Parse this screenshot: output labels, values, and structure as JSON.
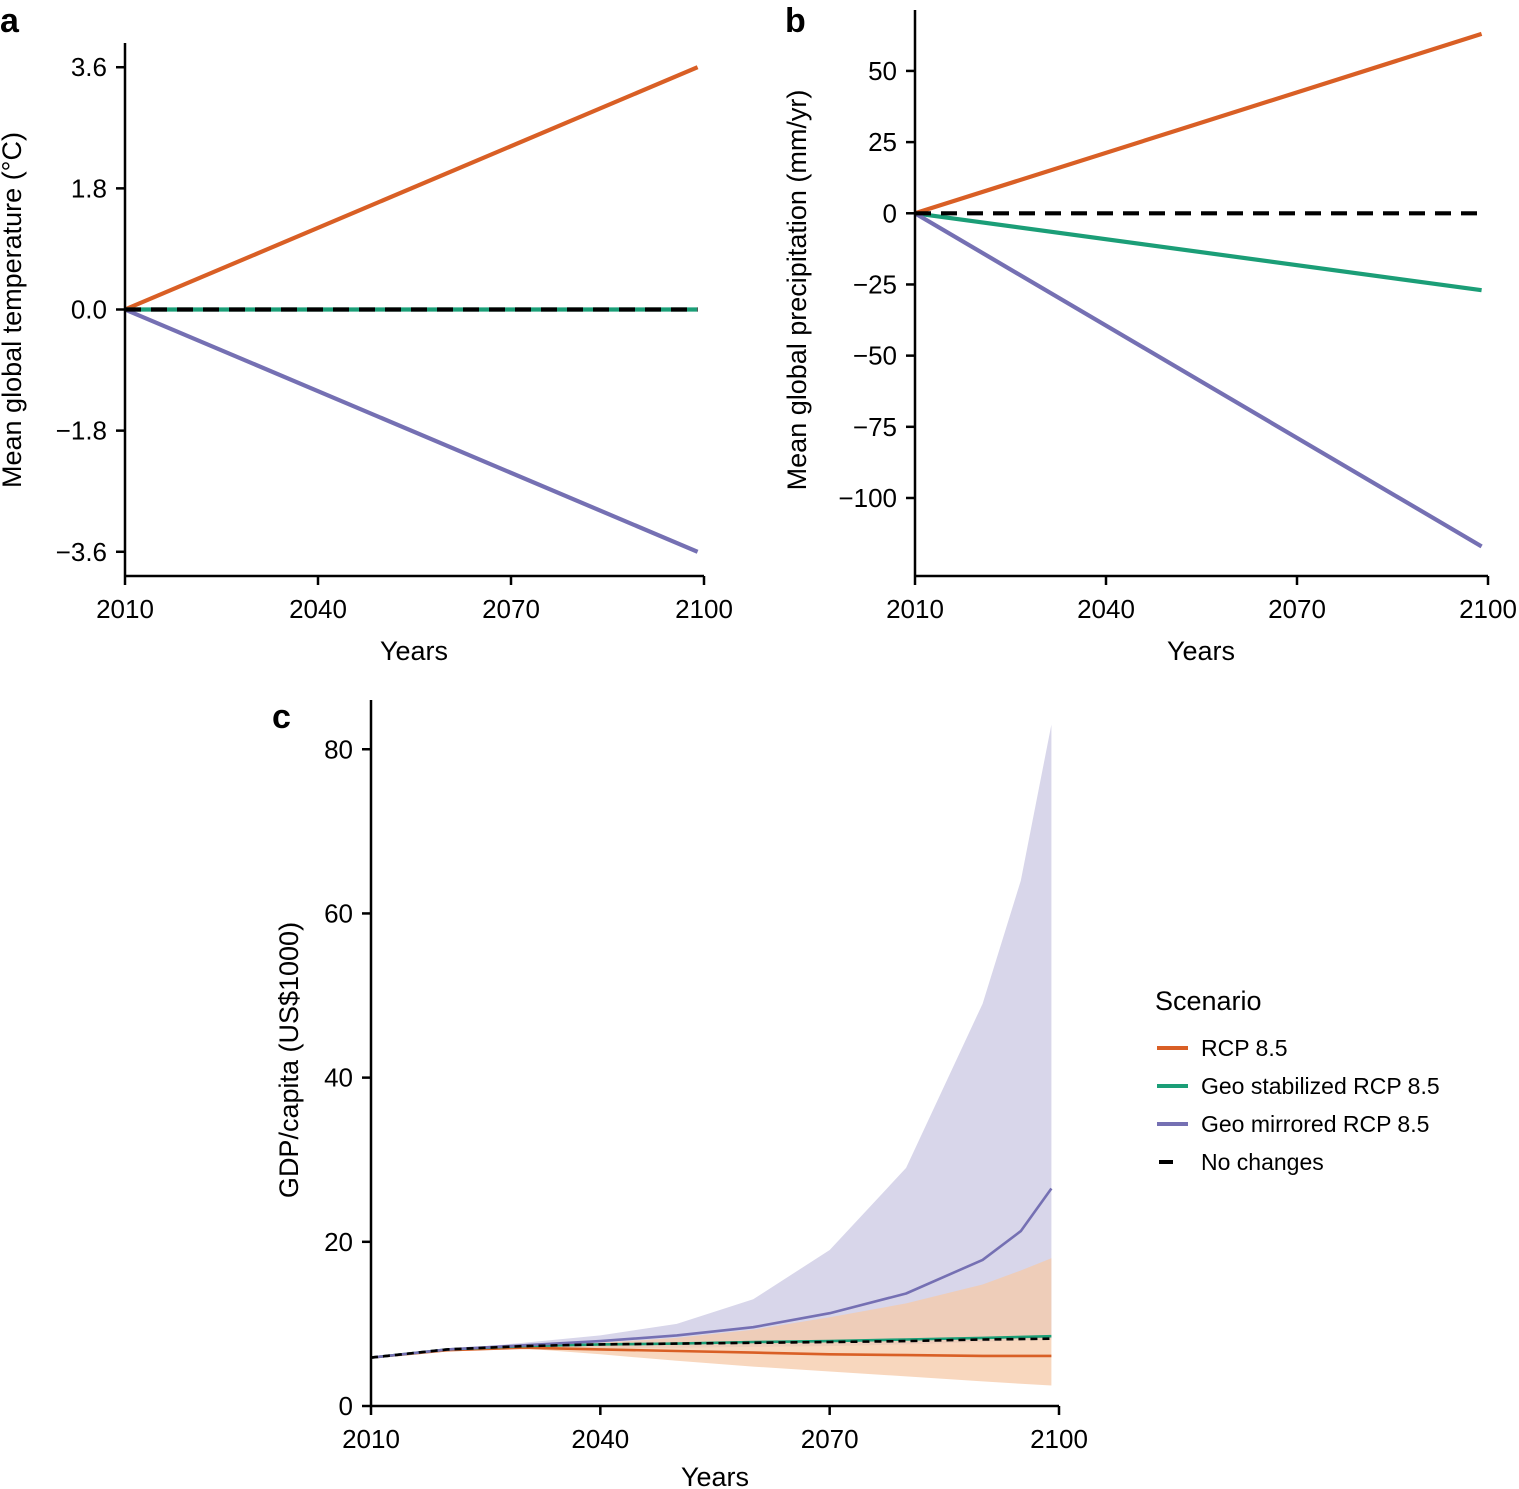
{
  "colors": {
    "rcp": "#D95F25",
    "geo_stabilized": "#1B9E77",
    "geo_mirrored": "#7570B3",
    "no_changes": "#000000",
    "mirrored_band": "#D8D6EA",
    "rcp_band": "#F6C9A8"
  },
  "chart_data": [
    {
      "panel": "a",
      "type": "line",
      "xlabel": "Years",
      "ylabel": "Mean global temperature (°C)",
      "xticks": [
        "2010",
        "2040",
        "2070",
        "2100"
      ],
      "yticks": [
        "3.6",
        "1.8",
        "0.0",
        "−1.8",
        "−3.6"
      ],
      "xlim": [
        2010,
        2100
      ],
      "ylim": [
        -3.96,
        3.96
      ],
      "series": [
        {
          "name": "RCP 8.5",
          "color_key": "rcp",
          "x": [
            2010,
            2099
          ],
          "y": [
            0,
            3.6
          ]
        },
        {
          "name": "Geo stabilized RCP 8.5",
          "color_key": "geo_stabilized",
          "x": [
            2010,
            2099
          ],
          "y": [
            0,
            0
          ]
        },
        {
          "name": "Geo mirrored RCP 8.5",
          "color_key": "geo_mirrored",
          "x": [
            2010,
            2099
          ],
          "y": [
            0,
            -3.6
          ]
        },
        {
          "name": "No changes",
          "color_key": "no_changes",
          "dashed": true,
          "x": [
            2010,
            2099
          ],
          "y": [
            0,
            0
          ]
        }
      ]
    },
    {
      "panel": "b",
      "type": "line",
      "xlabel": "Years",
      "ylabel": "Mean global precipitation (mm/yr)",
      "xticks": [
        "2010",
        "2040",
        "2070",
        "2100"
      ],
      "yticks": [
        "50",
        "25",
        "0",
        "−25",
        "−50",
        "−75",
        "−100"
      ],
      "xlim": [
        2010,
        2100
      ],
      "ylim": [
        -127.4,
        71.4
      ],
      "series": [
        {
          "name": "RCP 8.5",
          "color_key": "rcp",
          "x": [
            2010,
            2099
          ],
          "y": [
            0,
            63
          ]
        },
        {
          "name": "Geo stabilized RCP 8.5",
          "color_key": "geo_stabilized",
          "x": [
            2010,
            2099
          ],
          "y": [
            0,
            -27
          ]
        },
        {
          "name": "Geo mirrored RCP 8.5",
          "color_key": "geo_mirrored",
          "x": [
            2010,
            2099
          ],
          "y": [
            0,
            -117
          ]
        },
        {
          "name": "No changes",
          "color_key": "no_changes",
          "dashed": true,
          "x": [
            2010,
            2099
          ],
          "y": [
            0,
            0
          ]
        }
      ]
    },
    {
      "panel": "c",
      "type": "line",
      "xlabel": "Years",
      "ylabel": "GDP/capita (US$1000)",
      "xticks": [
        "2010",
        "2040",
        "2070",
        "2100"
      ],
      "yticks": [
        "80",
        "60",
        "40",
        "20",
        "0"
      ],
      "xlim": [
        2010,
        2100
      ],
      "ylim": [
        0,
        86
      ],
      "bands": [
        {
          "name": "Geo mirrored RCP 8.5 range",
          "color_key": "mirrored_band",
          "x": [
            2010,
            2020,
            2030,
            2040,
            2050,
            2060,
            2070,
            2080,
            2090,
            2095,
            2099
          ],
          "upper": [
            5.9,
            6.9,
            7.7,
            8.6,
            10.0,
            13.0,
            19.0,
            29.0,
            49.0,
            64.0,
            83.0
          ],
          "lower": [
            5.9,
            6.8,
            7.0,
            7.0,
            7.1,
            7.2,
            7.3,
            7.5,
            7.8,
            8.0,
            8.1
          ]
        },
        {
          "name": "RCP 8.5 range",
          "color_key": "rcp_band",
          "x": [
            2010,
            2020,
            2030,
            2040,
            2050,
            2060,
            2070,
            2080,
            2090,
            2095,
            2099
          ],
          "upper": [
            5.9,
            6.8,
            7.3,
            7.7,
            8.3,
            9.3,
            10.8,
            12.5,
            14.8,
            16.5,
            18.0
          ],
          "lower": [
            5.9,
            6.8,
            7.0,
            6.3,
            5.5,
            4.8,
            4.2,
            3.6,
            3.0,
            2.7,
            2.5
          ]
        }
      ],
      "series": [
        {
          "name": "RCP 8.5",
          "color_key": "rcp",
          "x": [
            2010,
            2020,
            2030,
            2040,
            2050,
            2060,
            2070,
            2080,
            2090,
            2099
          ],
          "y": [
            5.9,
            6.8,
            7.1,
            6.9,
            6.7,
            6.5,
            6.3,
            6.2,
            6.1,
            6.1
          ]
        },
        {
          "name": "Geo stabilized RCP 8.5",
          "color_key": "geo_stabilized",
          "x": [
            2010,
            2020,
            2030,
            2040,
            2050,
            2060,
            2070,
            2080,
            2090,
            2099
          ],
          "y": [
            5.9,
            6.9,
            7.3,
            7.5,
            7.6,
            7.8,
            7.9,
            8.1,
            8.3,
            8.5
          ]
        },
        {
          "name": "Geo mirrored RCP 8.5",
          "color_key": "geo_mirrored",
          "x": [
            2010,
            2020,
            2030,
            2040,
            2050,
            2060,
            2070,
            2080,
            2090,
            2095,
            2099
          ],
          "y": [
            5.9,
            6.9,
            7.4,
            7.9,
            8.6,
            9.6,
            11.3,
            13.7,
            17.8,
            21.3,
            26.5
          ]
        },
        {
          "name": "No changes",
          "color_key": "no_changes",
          "dashed": true,
          "x": [
            2010,
            2020,
            2030,
            2040,
            2050,
            2060,
            2070,
            2080,
            2090,
            2099
          ],
          "y": [
            5.9,
            6.9,
            7.3,
            7.5,
            7.6,
            7.7,
            7.8,
            7.9,
            8.1,
            8.2
          ]
        }
      ]
    }
  ],
  "legend": {
    "title": "Scenario",
    "items": [
      {
        "label": "RCP 8.5",
        "color_key": "rcp"
      },
      {
        "label": "Geo stabilized RCP 8.5",
        "color_key": "geo_stabilized"
      },
      {
        "label": "Geo mirrored RCP 8.5",
        "color_key": "geo_mirrored"
      },
      {
        "label": "No changes",
        "color_key": "no_changes"
      }
    ]
  }
}
